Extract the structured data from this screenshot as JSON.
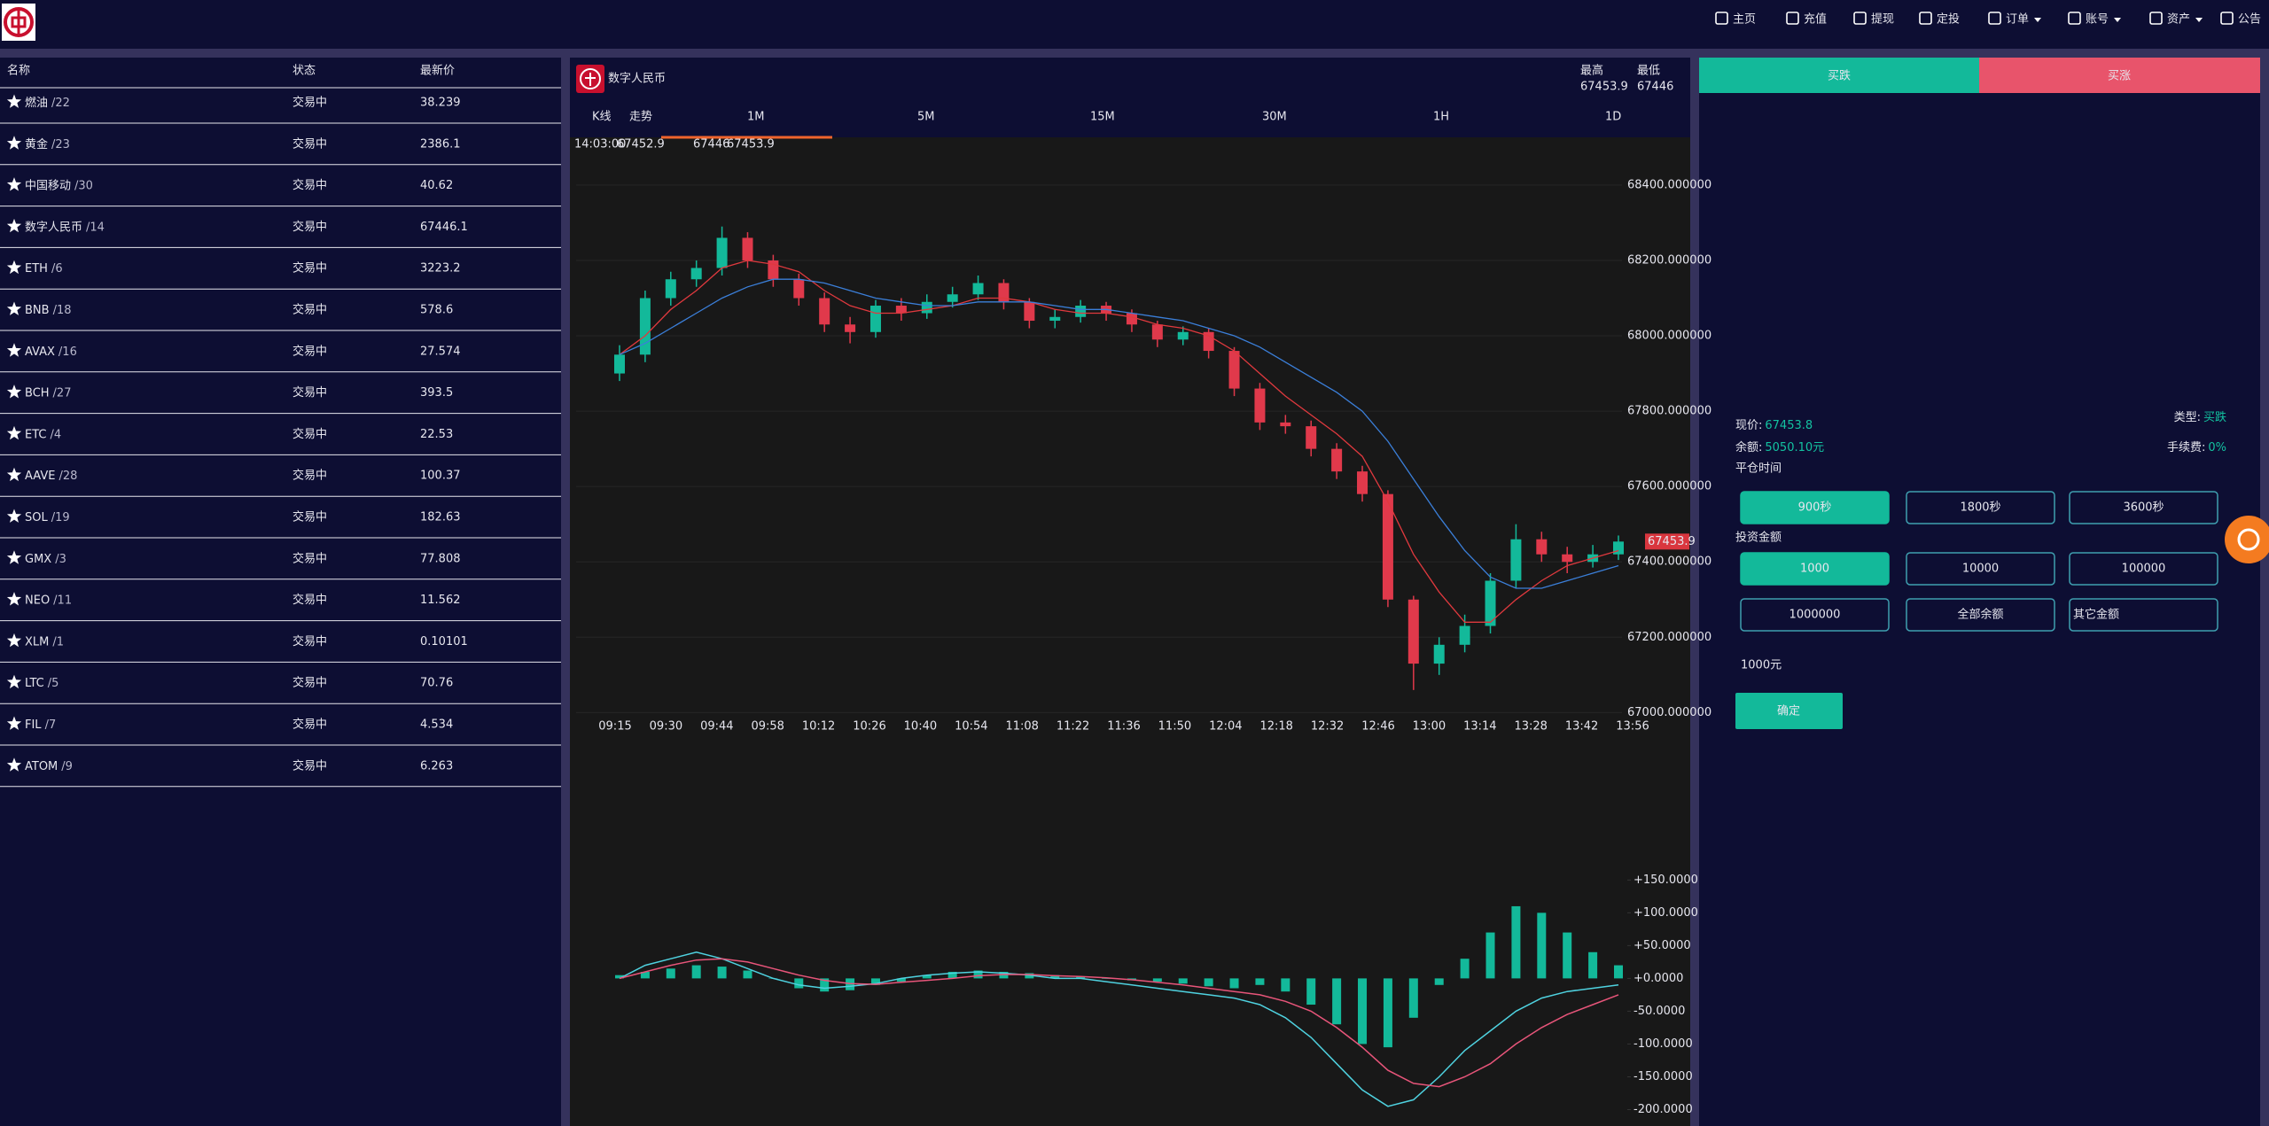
{
  "nav": {
    "items": [
      {
        "label": "主页"
      },
      {
        "label": "充值"
      },
      {
        "label": "提现"
      },
      {
        "label": "定投"
      },
      {
        "label": "订单",
        "dropdown": true
      },
      {
        "label": "账号",
        "dropdown": true
      },
      {
        "label": "资产",
        "dropdown": true
      },
      {
        "label": "公告"
      }
    ]
  },
  "market_list": {
    "headers": [
      "名称",
      "状态",
      "最新价"
    ],
    "rows": [
      [
        "燃油",
        "/22",
        "交易中",
        "38.239"
      ],
      [
        "黄金",
        "/23",
        "交易中",
        "2386.1"
      ],
      [
        "中国移动",
        "/30",
        "交易中",
        "40.62"
      ],
      [
        "数字人民币",
        "/14",
        "交易中",
        "67446.1"
      ],
      [
        "ETH",
        "/6",
        "交易中",
        "3223.2"
      ],
      [
        "BNB",
        "/18",
        "交易中",
        "578.6"
      ],
      [
        "AVAX",
        "/16",
        "交易中",
        "27.574"
      ],
      [
        "BCH",
        "/27",
        "交易中",
        "393.5"
      ],
      [
        "ETC",
        "/4",
        "交易中",
        "22.53"
      ],
      [
        "AAVE",
        "/28",
        "交易中",
        "100.37"
      ],
      [
        "SOL",
        "/19",
        "交易中",
        "182.63"
      ],
      [
        "GMX",
        "/3",
        "交易中",
        "77.808"
      ],
      [
        "NEO",
        "/11",
        "交易中",
        "11.562"
      ],
      [
        "XLM",
        "/1",
        "交易中",
        "0.10101"
      ],
      [
        "LTC",
        "/5",
        "交易中",
        "70.76"
      ],
      [
        "FIL",
        "/7",
        "交易中",
        "4.534"
      ],
      [
        "ATOM",
        "/9",
        "交易中",
        "6.263"
      ]
    ]
  },
  "symbol": {
    "name": "数字人民币",
    "high_label": "最高",
    "high": "67453.9",
    "low_label": "最低",
    "low": "67446"
  },
  "tabs": [
    {
      "label": "K线",
      "active": true
    },
    {
      "label": "走势"
    },
    {
      "label": "1M",
      "selected": true
    },
    {
      "label": "5M"
    },
    {
      "label": "15M"
    },
    {
      "label": "30M"
    },
    {
      "label": "1H"
    },
    {
      "label": "1D"
    }
  ],
  "chart_data": {
    "type": "candlestick",
    "legend_time": "14:03:00",
    "legend": [
      {
        "text": "67452.9",
        "color": "#e0393e"
      },
      {
        "text": "67446",
        "color": "#2ca02c"
      },
      {
        "text": "67453.9",
        "color": "#f2e94e"
      }
    ],
    "up_color": "#13b99a",
    "down_color": "#e0394b",
    "grid": true,
    "ylim": [
      66975,
      68515
    ],
    "yticks": [
      {
        "value": 68400,
        "label": "68400.000000"
      },
      {
        "value": 68200,
        "label": "68200.000000"
      },
      {
        "value": 68000,
        "label": "68000.000000"
      },
      {
        "value": 67800,
        "label": "67800.000000"
      },
      {
        "value": 67600,
        "label": "67600.000000"
      },
      {
        "value": 67400,
        "label": "67400.000000"
      },
      {
        "value": 67200,
        "label": "67200.000000"
      },
      {
        "value": 67000,
        "label": "67000.000000"
      }
    ],
    "x_labels": [
      "09:15",
      "09:30",
      "09:44",
      "09:58",
      "10:12",
      "10:26",
      "10:40",
      "10:54",
      "11:08",
      "11:22",
      "11:36",
      "11:50",
      "12:04",
      "12:18",
      "12:32",
      "12:46",
      "13:00",
      "13:14",
      "13:28",
      "13:42",
      "13:56"
    ],
    "price_tag": 67453.9,
    "candles": [
      {
        "open": 67900,
        "close": 67950,
        "high": 67975,
        "low": 67880
      },
      {
        "open": 67950,
        "close": 68100,
        "high": 68120,
        "low": 67930
      },
      {
        "open": 68100,
        "close": 68150,
        "high": 68170,
        "low": 68080
      },
      {
        "open": 68150,
        "close": 68180,
        "high": 68200,
        "low": 68130
      },
      {
        "open": 68180,
        "close": 68260,
        "high": 68290,
        "low": 68160
      },
      {
        "open": 68260,
        "close": 68200,
        "high": 68275,
        "low": 68180
      },
      {
        "open": 68200,
        "close": 68150,
        "high": 68215,
        "low": 68130
      },
      {
        "open": 68150,
        "close": 68100,
        "high": 68165,
        "low": 68080
      },
      {
        "open": 68100,
        "close": 68030,
        "high": 68115,
        "low": 68010
      },
      {
        "open": 68030,
        "close": 68010,
        "high": 68050,
        "low": 67980
      },
      {
        "open": 68010,
        "close": 68080,
        "high": 68095,
        "low": 67995
      },
      {
        "open": 68080,
        "close": 68060,
        "high": 68100,
        "low": 68040
      },
      {
        "open": 68060,
        "close": 68090,
        "high": 68110,
        "low": 68045
      },
      {
        "open": 68090,
        "close": 68110,
        "high": 68130,
        "low": 68075
      },
      {
        "open": 68110,
        "close": 68140,
        "high": 68160,
        "low": 68095
      },
      {
        "open": 68140,
        "close": 68090,
        "high": 68150,
        "low": 68070
      },
      {
        "open": 68090,
        "close": 68040,
        "high": 68100,
        "low": 68020
      },
      {
        "open": 68040,
        "close": 68050,
        "high": 68070,
        "low": 68020
      },
      {
        "open": 68050,
        "close": 68080,
        "high": 68095,
        "low": 68035
      },
      {
        "open": 68080,
        "close": 68060,
        "high": 68090,
        "low": 68040
      },
      {
        "open": 68060,
        "close": 68030,
        "high": 68070,
        "low": 68010
      },
      {
        "open": 68030,
        "close": 67990,
        "high": 68040,
        "low": 67970
      },
      {
        "open": 67990,
        "close": 68010,
        "high": 68025,
        "low": 67975
      },
      {
        "open": 68010,
        "close": 67960,
        "high": 68020,
        "low": 67940
      },
      {
        "open": 67960,
        "close": 67860,
        "high": 67970,
        "low": 67840
      },
      {
        "open": 67860,
        "close": 67770,
        "high": 67875,
        "low": 67750
      },
      {
        "open": 67770,
        "close": 67760,
        "high": 67790,
        "low": 67740
      },
      {
        "open": 67760,
        "close": 67700,
        "high": 67775,
        "low": 67680
      },
      {
        "open": 67700,
        "close": 67640,
        "high": 67715,
        "low": 67620
      },
      {
        "open": 67640,
        "close": 67580,
        "high": 67655,
        "low": 67560
      },
      {
        "open": 67580,
        "close": 67300,
        "high": 67590,
        "low": 67280
      },
      {
        "open": 67300,
        "close": 67130,
        "high": 67310,
        "low": 67060
      },
      {
        "open": 67130,
        "close": 67180,
        "high": 67200,
        "low": 67100
      },
      {
        "open": 67180,
        "close": 67230,
        "high": 67260,
        "low": 67160
      },
      {
        "open": 67230,
        "close": 67350,
        "high": 67370,
        "low": 67210
      },
      {
        "open": 67350,
        "close": 67460,
        "high": 67500,
        "low": 67330
      },
      {
        "open": 67460,
        "close": 67420,
        "high": 67480,
        "low": 67400
      },
      {
        "open": 67420,
        "close": 67400,
        "high": 67440,
        "low": 67370
      },
      {
        "open": 67400,
        "close": 67420,
        "high": 67445,
        "low": 67385
      },
      {
        "open": 67420,
        "close": 67453.9,
        "high": 67470,
        "low": 67405
      }
    ],
    "ma": [
      {
        "color": "#e0393e",
        "values": [
          67950,
          68000,
          68070,
          68120,
          68180,
          68200,
          68190,
          68170,
          68120,
          68080,
          68060,
          68060,
          68070,
          68080,
          68100,
          68100,
          68090,
          68070,
          68060,
          68060,
          68050,
          68030,
          68020,
          68000,
          67960,
          67900,
          67840,
          67790,
          67740,
          67680,
          67560,
          67420,
          67320,
          67240,
          67240,
          67300,
          67350,
          67390,
          67410,
          67430
        ]
      },
      {
        "color": "#3b7fd9",
        "values": [
          67950,
          67980,
          68020,
          68060,
          68100,
          68130,
          68150,
          68150,
          68140,
          68120,
          68100,
          68090,
          68080,
          68080,
          68090,
          68090,
          68090,
          68080,
          68070,
          68070,
          68060,
          68050,
          68040,
          68020,
          68000,
          67970,
          67930,
          67890,
          67850,
          67800,
          67720,
          67620,
          67520,
          67430,
          67360,
          67330,
          67330,
          67350,
          67370,
          67390
        ]
      }
    ],
    "macd": {
      "ylim": [
        -225,
        195
      ],
      "yticks": [
        {
          "value": 150,
          "label": "+150.0000"
        },
        {
          "value": 100,
          "label": "+100.0000"
        },
        {
          "value": 50,
          "label": "+50.0000"
        },
        {
          "value": 0,
          "label": "+0.0000"
        },
        {
          "value": -50,
          "label": "-50.0000"
        },
        {
          "value": -100,
          "label": "-100.0000"
        },
        {
          "value": -150,
          "label": "-150.0000"
        },
        {
          "value": -200,
          "label": "-200.0000"
        }
      ],
      "hist_color": "#13b99a",
      "hist": [
        5,
        10,
        15,
        20,
        18,
        12,
        0,
        -15,
        -20,
        -18,
        -10,
        -5,
        5,
        10,
        12,
        10,
        8,
        5,
        3,
        0,
        -3,
        -5,
        -8,
        -12,
        -15,
        -10,
        -20,
        -40,
        -70,
        -100,
        -105,
        -60,
        -10,
        30,
        70,
        110,
        100,
        70,
        40,
        20
      ],
      "lines": [
        {
          "color": "#4fd2e0",
          "values": [
            0,
            20,
            30,
            40,
            30,
            15,
            0,
            -10,
            -15,
            -12,
            -8,
            0,
            5,
            8,
            10,
            8,
            5,
            0,
            0,
            -5,
            -10,
            -15,
            -20,
            -25,
            -30,
            -40,
            -60,
            -90,
            -130,
            -170,
            -195,
            -185,
            -150,
            -110,
            -80,
            -50,
            -30,
            -20,
            -15,
            -10
          ]
        },
        {
          "color": "#e8557a",
          "values": [
            0,
            10,
            20,
            28,
            30,
            25,
            15,
            5,
            -3,
            -8,
            -9,
            -6,
            -3,
            0,
            4,
            6,
            6,
            4,
            3,
            1,
            -2,
            -6,
            -10,
            -15,
            -20,
            -25,
            -35,
            -50,
            -75,
            -105,
            -140,
            -160,
            -165,
            -150,
            -130,
            -100,
            -75,
            -55,
            -40,
            -25
          ]
        }
      ]
    }
  },
  "trade": {
    "sell": "买跌",
    "buy": "买涨",
    "price_label": "现价:",
    "price": "67453.8",
    "type_label": "类型:",
    "type": "买跌",
    "balance_label": "余额:",
    "balance": "5050.10元",
    "fee_label": "手续费:",
    "fee": "0%",
    "close_time_label": "平仓时间",
    "close_times": [
      {
        "label": "900秒",
        "active": true
      },
      {
        "label": "1800秒"
      },
      {
        "label": "3600秒"
      }
    ],
    "amount_label": "投资金额",
    "amounts": [
      {
        "label": "1000",
        "active": true
      },
      {
        "label": "10000"
      },
      {
        "label": "100000"
      },
      {
        "label": "1000000"
      },
      {
        "label": "全部余额"
      }
    ],
    "other_placeholder": "其它金额",
    "selected_amount": "1000元",
    "confirm": "确定"
  }
}
